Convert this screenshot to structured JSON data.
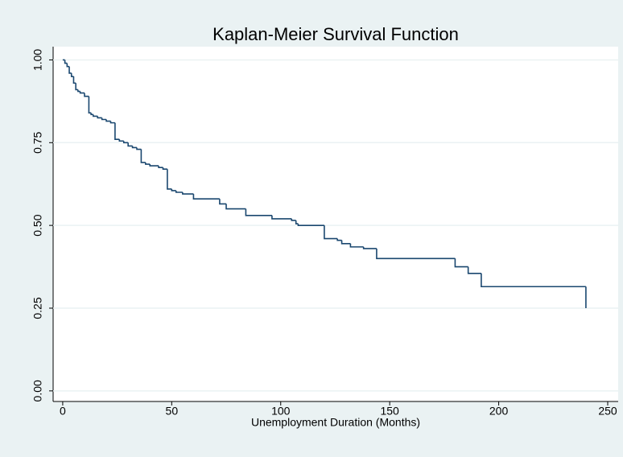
{
  "chart_data": {
    "type": "step",
    "title": "Kaplan-Meier Survival Function",
    "x_label": "Unemployment Duration (Months)",
    "color": "#1a476f",
    "x": [
      0,
      1,
      2,
      3,
      4,
      5,
      6,
      7,
      8,
      10,
      12,
      13,
      14,
      16,
      18,
      20,
      22,
      24,
      26,
      28,
      30,
      32,
      34,
      36,
      38,
      40,
      44,
      46,
      48,
      50,
      52,
      55,
      60,
      72,
      75,
      84,
      96,
      105,
      107,
      108,
      120,
      126,
      128,
      132,
      138,
      144,
      180,
      186,
      192,
      240
    ],
    "values": [
      1.0,
      0.99,
      0.98,
      0.96,
      0.95,
      0.93,
      0.91,
      0.905,
      0.9,
      0.89,
      0.84,
      0.835,
      0.83,
      0.825,
      0.82,
      0.815,
      0.81,
      0.76,
      0.755,
      0.75,
      0.74,
      0.735,
      0.73,
      0.69,
      0.685,
      0.68,
      0.675,
      0.67,
      0.61,
      0.605,
      0.6,
      0.595,
      0.58,
      0.565,
      0.55,
      0.53,
      0.52,
      0.515,
      0.505,
      0.5,
      0.46,
      0.455,
      0.445,
      0.435,
      0.43,
      0.4,
      0.375,
      0.355,
      0.315,
      0.25
    ],
    "xlim": [
      -4.4,
      254.8
    ],
    "xticks": [
      0,
      50,
      100,
      150,
      200,
      250
    ],
    "ylim": [
      -0.032,
      1.04
    ],
    "yticks": [
      {
        "value": 0,
        "label": "0.00"
      },
      {
        "value": 0.25,
        "label": "0.25"
      },
      {
        "value": 0.5,
        "label": "0.50"
      },
      {
        "value": 0.75,
        "label": "0.75"
      },
      {
        "value": 1,
        "label": "1.00"
      }
    ],
    "grid": true
  }
}
